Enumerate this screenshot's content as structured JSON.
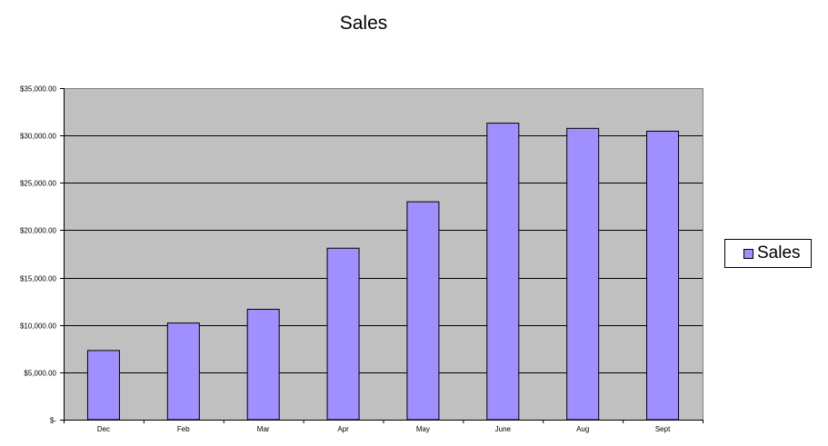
{
  "chart_data": {
    "type": "bar",
    "title": "Sales",
    "xlabel": "",
    "ylabel": "",
    "categories": [
      "Dec",
      "Feb",
      "Mar",
      "Apr",
      "May",
      "June",
      "Aug",
      "Sept"
    ],
    "series": [
      {
        "name": "Sales",
        "values": [
          7300,
          10200,
          11650,
          18100,
          23000,
          31300,
          30750,
          30450
        ],
        "color": "#9f8fff"
      }
    ],
    "ylim": [
      0,
      35000
    ],
    "yticks": [
      0,
      5000,
      10000,
      15000,
      20000,
      25000,
      30000,
      35000
    ],
    "ytick_labels": [
      "$-",
      "$5,000.00",
      "$10,000.00",
      "$15,000.00",
      "$20,000.00",
      "$25,000.00",
      "$30,000.00",
      "$35,000.00"
    ],
    "grid": true,
    "plot_background": "#c0c0c0",
    "legend": "right"
  }
}
